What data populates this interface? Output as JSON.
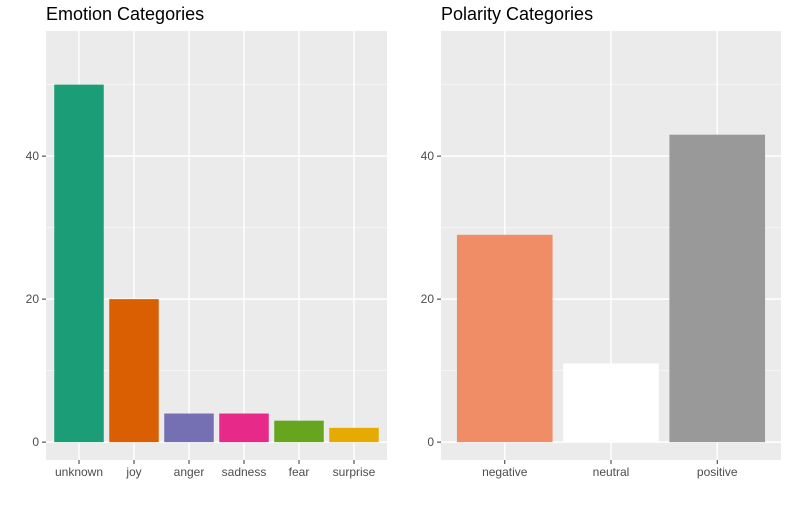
{
  "chart_data": [
    {
      "type": "bar",
      "title": "Emotion Categories",
      "xlabel": "",
      "ylabel": "",
      "categories": [
        "unknown",
        "joy",
        "anger",
        "sadness",
        "fear",
        "surprise"
      ],
      "values": [
        50,
        20,
        4,
        4,
        3,
        2
      ],
      "colors": [
        "#1b9e77",
        "#d95f02",
        "#7570b3",
        "#e7298a",
        "#66a61e",
        "#e6ab02"
      ],
      "ylim": [
        -2.5,
        57.5
      ],
      "yticks": [
        0,
        20,
        40
      ],
      "grid": true,
      "legend": "none"
    },
    {
      "type": "bar",
      "title": "Polarity Categories",
      "xlabel": "",
      "ylabel": "",
      "categories": [
        "negative",
        "neutral",
        "positive"
      ],
      "values": [
        29,
        11,
        43
      ],
      "colors": [
        "#f08c66",
        "#ffffff",
        "#999999"
      ],
      "ylim": [
        -2.5,
        57.5
      ],
      "yticks": [
        0,
        20,
        40
      ],
      "grid": true,
      "legend": "none"
    }
  ]
}
